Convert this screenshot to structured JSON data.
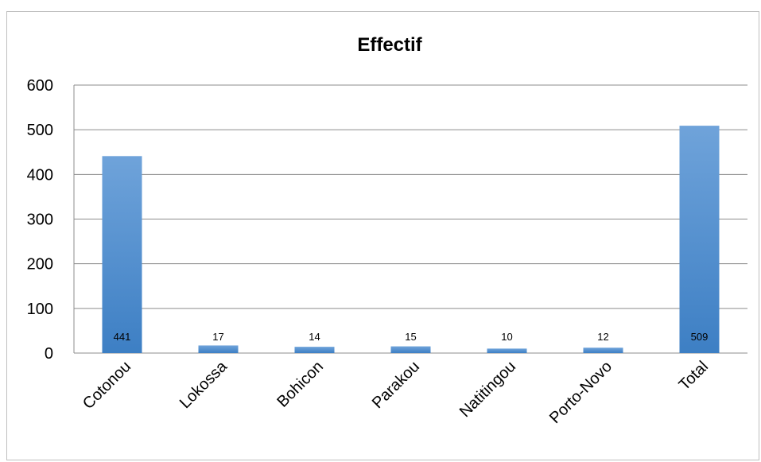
{
  "chart_data": {
    "type": "bar",
    "title": "Effectif",
    "categories": [
      "Cotonou",
      "Lokossa",
      "Bohicon",
      "Parakou",
      "Natitingou",
      "Porto-Novo",
      "Total"
    ],
    "values": [
      441,
      17,
      14,
      15,
      10,
      12,
      509
    ],
    "data_labels": [
      "441",
      "17",
      "14",
      "15",
      "10",
      "12",
      "509"
    ],
    "yticks": [
      "0",
      "100",
      "200",
      "300",
      "400",
      "500",
      "600"
    ],
    "ylim": [
      0,
      600
    ],
    "xlabel": "",
    "ylabel": "",
    "grid": true,
    "legend": "none",
    "colors": {
      "bar_top": "#6fa3da",
      "bar_bottom": "#3d7fc4",
      "grid": "#8c8c8c",
      "frame": "#bfbfbf"
    }
  }
}
